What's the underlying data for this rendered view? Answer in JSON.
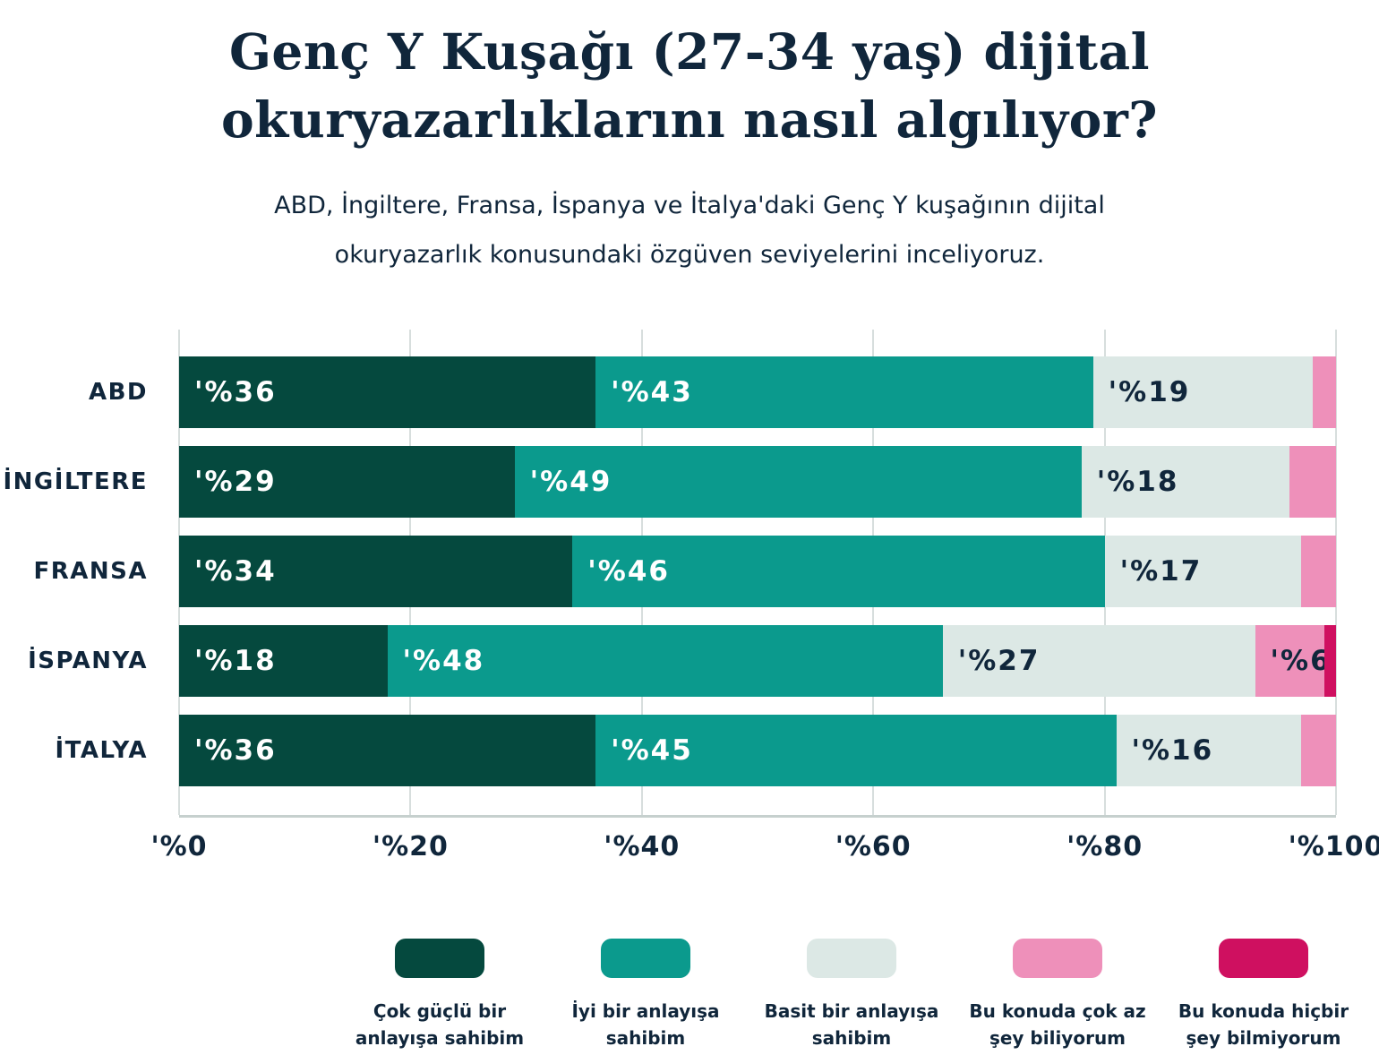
{
  "title": {
    "text": "Genç Y Kuşağı (27-34 yaş) dijital\nokuryazarlıklarını nasıl algılıyor?"
  },
  "subtitle": "ABD, İngiltere, Fransa, İspanya ve İtalya'daki Genç Y kuşağının dijital\nokuryazarlık konusundaki özgüven seviyelerini inceliyoruz.",
  "colors": {
    "text_navy": "#10263b",
    "background": "#ffffff",
    "gridline": "#d7dedd",
    "axis_line": "#c6d0ce"
  },
  "chart_data": {
    "type": "bar",
    "orientation": "horizontal-stacked",
    "title": "Genç Y Kuşağı (27-34 yaş) dijital okuryazarlıklarını nasıl algılıyor?",
    "categories": [
      "ABD",
      "İNGİLTERE",
      "FRANSA",
      "İSPANYA",
      "İTALYA"
    ],
    "series": [
      {
        "name": "Çok güçlü bir anlayışa sahibim",
        "color": "#05493e",
        "label_color": "#ffffff",
        "values": [
          36,
          29,
          34,
          18,
          36
        ]
      },
      {
        "name": "İyi bir anlayışa sahibim",
        "color": "#0b9a8d",
        "label_color": "#ffffff",
        "values": [
          43,
          49,
          46,
          48,
          45
        ]
      },
      {
        "name": "Basit bir anlayışa sahibim",
        "color": "#dce8e5",
        "label_color": "#10263b",
        "values": [
          19,
          18,
          17,
          27,
          16
        ]
      },
      {
        "name": "Bu konuda çok az şey biliyorum",
        "color": "#ee90ba",
        "label_color": "#10263b",
        "values": [
          2,
          4,
          3,
          6,
          3
        ]
      },
      {
        "name": "Bu konuda hiçbir şey bilmiyorum",
        "color": "#cf1060",
        "label_color": "#10263b",
        "values": [
          0,
          0,
          0,
          1,
          0
        ]
      }
    ],
    "value_prefix": "'%",
    "label_min": 6,
    "xlabel": "",
    "ylabel": "",
    "xlim": [
      0,
      100
    ],
    "grid": true,
    "legend_position": "bottom",
    "xticks": [
      {
        "label": "'%0",
        "value": 0
      },
      {
        "label": "'%20",
        "value": 20
      },
      {
        "label": "'%40",
        "value": 40
      },
      {
        "label": "'%60",
        "value": 60
      },
      {
        "label": "'%80",
        "value": 80
      },
      {
        "label": "'%100",
        "value": 100
      }
    ]
  },
  "legend": {
    "items": [
      {
        "label": "Çok güçlü bir\nanlayışa sahibim",
        "color": "#05493e"
      },
      {
        "label": "İyi bir anlayışa\nsahibim",
        "color": "#0b9a8d"
      },
      {
        "label": "Basit bir anlayışa\nsahibim",
        "color": "#dce8e5"
      },
      {
        "label": "Bu konuda çok az\nşey biliyorum",
        "color": "#ee90ba"
      },
      {
        "label": "Bu konuda hiçbir\nşey bilmiyorum",
        "color": "#cf1060"
      }
    ]
  }
}
